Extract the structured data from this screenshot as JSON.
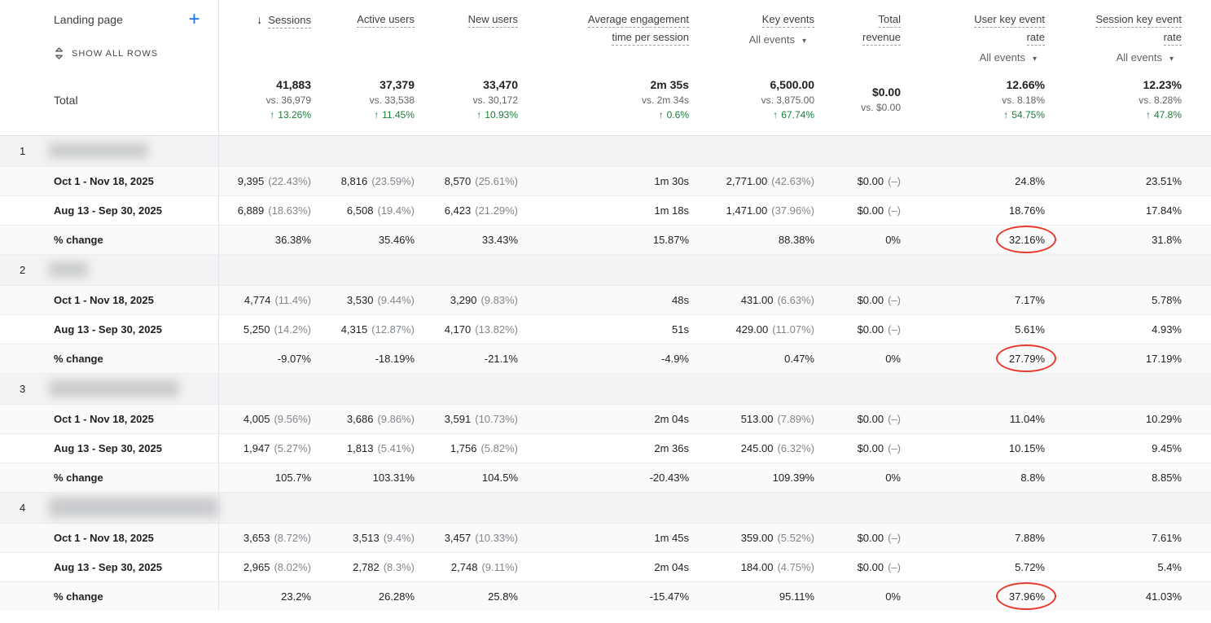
{
  "colors": {
    "green": "#188038",
    "annotation_red": "#e8392c",
    "accent_blue": "#1a73e8"
  },
  "icons": {
    "sort_desc": "↓",
    "up_arrow": "↑",
    "caret_down": "▾",
    "plus": "+",
    "unfold": "unfold-more-icon"
  },
  "table": {
    "header": {
      "dimension_label": "Landing page",
      "show_all_rows_label": "SHOW ALL ROWS",
      "total_label": "Total",
      "filter_label": "All events"
    },
    "columns": [
      {
        "lines": [
          "Sessions"
        ],
        "sorted": true,
        "filter": false
      },
      {
        "lines": [
          "Active users"
        ],
        "sorted": false,
        "filter": false
      },
      {
        "lines": [
          "New users"
        ],
        "sorted": false,
        "filter": false
      },
      {
        "lines": [
          "Average engagement",
          "time per session"
        ],
        "sorted": false,
        "filter": false
      },
      {
        "lines": [
          "Key events"
        ],
        "sorted": false,
        "filter": true
      },
      {
        "lines": [
          "Total",
          "revenue"
        ],
        "sorted": false,
        "filter": false
      },
      {
        "lines": [
          "User key event",
          "rate"
        ],
        "sorted": false,
        "filter": true
      },
      {
        "lines": [
          "Session key event",
          "rate"
        ],
        "sorted": false,
        "filter": true
      }
    ],
    "totals": [
      {
        "value": "41,883",
        "vs": "vs. 36,979",
        "change": "13.26%"
      },
      {
        "value": "37,379",
        "vs": "vs. 33,538",
        "change": "11.45%"
      },
      {
        "value": "33,470",
        "vs": "vs. 30,172",
        "change": "10.93%"
      },
      {
        "value": "2m 35s",
        "vs": "vs. 2m 34s",
        "change": "0.6%"
      },
      {
        "value": "6,500.00",
        "vs": "vs. 3,875.00",
        "change": "67.74%"
      },
      {
        "value": "$0.00",
        "vs": "vs. $0.00",
        "change": null
      },
      {
        "value": "12.66%",
        "vs": "vs. 8.18%",
        "change": "54.75%"
      },
      {
        "value": "12.23%",
        "vs": "vs. 8.28%",
        "change": "47.8%"
      }
    ],
    "date_range_1": "Oct 1 - Nov 18, 2025",
    "date_range_2": "Aug 13 - Sep 30, 2025",
    "pct_change_label": "% change",
    "groups": [
      {
        "num": "1",
        "blur_width": 122,
        "blur_height": 18,
        "rows": [
          {
            "label": "Oct 1 - Nov 18, 2025",
            "cells": [
              "9,395 (22.43%)",
              "8,816 (23.59%)",
              "8,570 (25.61%)",
              "1m 30s",
              "2,771.00 (42.63%)",
              "$0.00 (–)",
              "24.8%",
              "23.51%"
            ]
          },
          {
            "label": "Aug 13 - Sep 30, 2025",
            "cells": [
              "6,889 (18.63%)",
              "6,508 (19.4%)",
              "6,423 (21.29%)",
              "1m 18s",
              "1,471.00 (37.96%)",
              "$0.00 (–)",
              "18.76%",
              "17.84%"
            ]
          }
        ],
        "pct": {
          "label": "% change",
          "cells": [
            "36.38%",
            "35.46%",
            "33.43%",
            "15.87%",
            "88.38%",
            "0%",
            "32.16%",
            "31.8%"
          ],
          "circled": 6
        }
      },
      {
        "num": "2",
        "blur_width": 48,
        "blur_height": 18,
        "rows": [
          {
            "label": "Oct 1 - Nov 18, 2025",
            "cells": [
              "4,774 (11.4%)",
              "3,530 (9.44%)",
              "3,290 (9.83%)",
              "48s",
              "431.00 (6.63%)",
              "$0.00 (–)",
              "7.17%",
              "5.78%"
            ]
          },
          {
            "label": "Aug 13 - Sep 30, 2025",
            "cells": [
              "5,250 (14.2%)",
              "4,315 (12.87%)",
              "4,170 (13.82%)",
              "51s",
              "429.00 (11.07%)",
              "$0.00 (–)",
              "5.61%",
              "4.93%"
            ]
          }
        ],
        "pct": {
          "label": "% change",
          "cells": [
            "-9.07%",
            "-18.19%",
            "-21.1%",
            "-4.9%",
            "0.47%",
            "0%",
            "27.79%",
            "17.19%"
          ],
          "circled": 6
        }
      },
      {
        "num": "3",
        "blur_width": 160,
        "blur_height": 20,
        "rows": [
          {
            "label": "Oct 1 - Nov 18, 2025",
            "cells": [
              "4,005 (9.56%)",
              "3,686 (9.86%)",
              "3,591 (10.73%)",
              "2m 04s",
              "513.00 (7.89%)",
              "$0.00 (–)",
              "11.04%",
              "10.29%"
            ]
          },
          {
            "label": "Aug 13 - Sep 30, 2025",
            "cells": [
              "1,947 (5.27%)",
              "1,813 (5.41%)",
              "1,756 (5.82%)",
              "2m 36s",
              "245.00 (6.32%)",
              "$0.00 (–)",
              "10.15%",
              "9.45%"
            ]
          }
        ],
        "pct": {
          "label": "% change",
          "cells": [
            "105.7%",
            "103.31%",
            "104.5%",
            "-20.43%",
            "109.39%",
            "0%",
            "8.8%",
            "8.85%"
          ],
          "circled": -1
        }
      },
      {
        "num": "4",
        "blur_width": 222,
        "blur_height": 24,
        "rows": [
          {
            "label": "Oct 1 - Nov 18, 2025",
            "cells": [
              "3,653 (8.72%)",
              "3,513 (9.4%)",
              "3,457 (10.33%)",
              "1m 45s",
              "359.00 (5.52%)",
              "$0.00 (–)",
              "7.88%",
              "7.61%"
            ]
          },
          {
            "label": "Aug 13 - Sep 30, 2025",
            "cells": [
              "2,965 (8.02%)",
              "2,782 (8.3%)",
              "2,748 (9.11%)",
              "2m 04s",
              "184.00 (4.75%)",
              "$0.00 (–)",
              "5.72%",
              "5.4%"
            ]
          }
        ],
        "pct": {
          "label": "% change",
          "cells": [
            "23.2%",
            "26.28%",
            "25.8%",
            "-15.47%",
            "95.11%",
            "0%",
            "37.96%",
            "41.03%"
          ],
          "circled": 6
        }
      }
    ]
  }
}
